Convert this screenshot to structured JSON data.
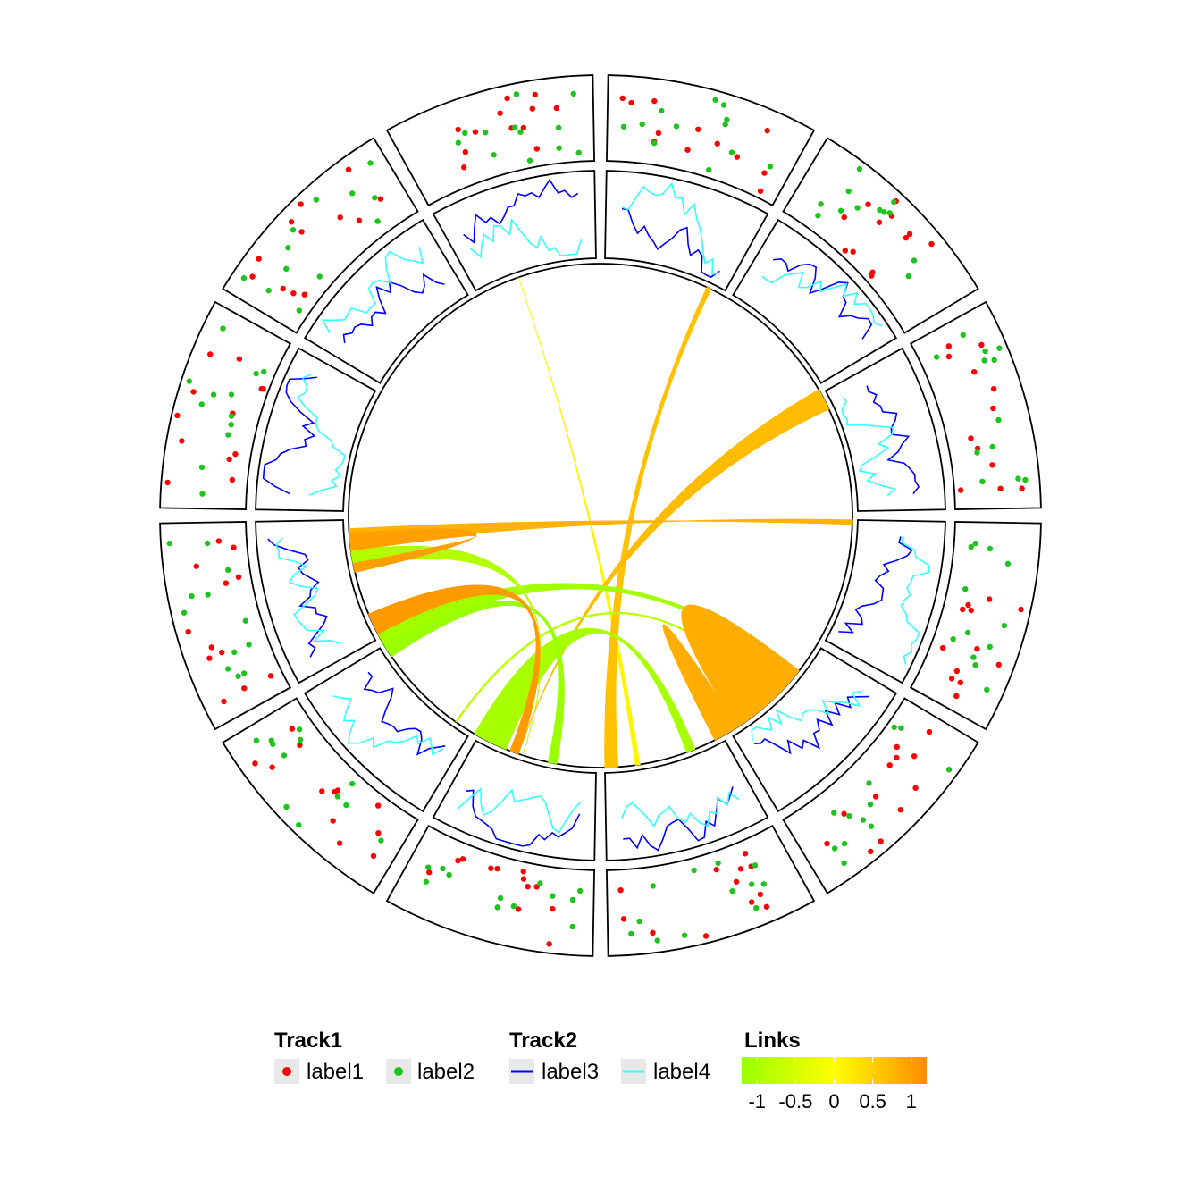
{
  "chart_data": {
    "type": "circos",
    "sector_count": 12,
    "tracks": [
      {
        "name": "Track1",
        "kind": "points",
        "series": [
          {
            "name": "label1",
            "color": "#ff0000"
          },
          {
            "name": "label2",
            "color": "#1ec41e"
          }
        ],
        "points_per_series_per_sector": 12
      },
      {
        "name": "Track2",
        "kind": "lines",
        "series": [
          {
            "name": "label3",
            "color": "#0000ff"
          },
          {
            "name": "label4",
            "color": "#33ffff"
          }
        ],
        "points_per_series_per_sector": 20
      }
    ],
    "links": {
      "name": "Links",
      "scale": {
        "domain": [
          -1.2,
          1.2
        ],
        "ticks": [
          -1,
          -0.5,
          0,
          0.5,
          1
        ],
        "tick_labels": [
          "-1",
          "-0.5",
          "0",
          "0.5",
          "1"
        ],
        "colors": [
          "#9aff00",
          "#ffff00",
          "#ff8c00"
        ]
      },
      "items": [
        {
          "a1": 172,
          "a2": 171,
          "b1": 341,
          "b2": 341,
          "value": 0.1
        },
        {
          "a1": 179,
          "a2": 176,
          "b1": 26,
          "b2": 25,
          "value": 0.65
        },
        {
          "a1": 65,
          "a2": 60,
          "b1": 199,
          "b2": 199,
          "value": 0.7
        },
        {
          "a1": 210,
          "a2": 202,
          "b1": 160,
          "b2": 158,
          "value": -1.05
        },
        {
          "a1": 215,
          "a2": 215,
          "b1": 137,
          "b2": 137,
          "value": -0.8
        },
        {
          "a1": 242,
          "a2": 238,
          "b1": 130,
          "b2": 129,
          "value": -1.1
        },
        {
          "a1": 239,
          "a2": 236,
          "b1": 192,
          "b2": 190,
          "value": -1.2
        },
        {
          "a1": 247,
          "a2": 242,
          "b1": 201,
          "b2": 199,
          "value": 1.05
        },
        {
          "a1": 262,
          "a2": 258,
          "b1": 198,
          "b2": 198,
          "value": -0.9
        },
        {
          "a1": 263,
          "a2": 267,
          "b1": 92,
          "b2": 91,
          "value": 0.8
        },
        {
          "a1": 262,
          "a2": 266,
          "b1": 257,
          "b2": 259,
          "value": 1.0
        },
        {
          "a1": 153,
          "a2": 128,
          "b1": 147,
          "b2": 147,
          "value": 0.85
        }
      ]
    }
  },
  "legend": {
    "track1": {
      "title": "Track1",
      "items": [
        "label1",
        "label2"
      ]
    },
    "track2": {
      "title": "Track2",
      "items": [
        "label3",
        "label4"
      ]
    },
    "links": {
      "title": "Links"
    }
  }
}
